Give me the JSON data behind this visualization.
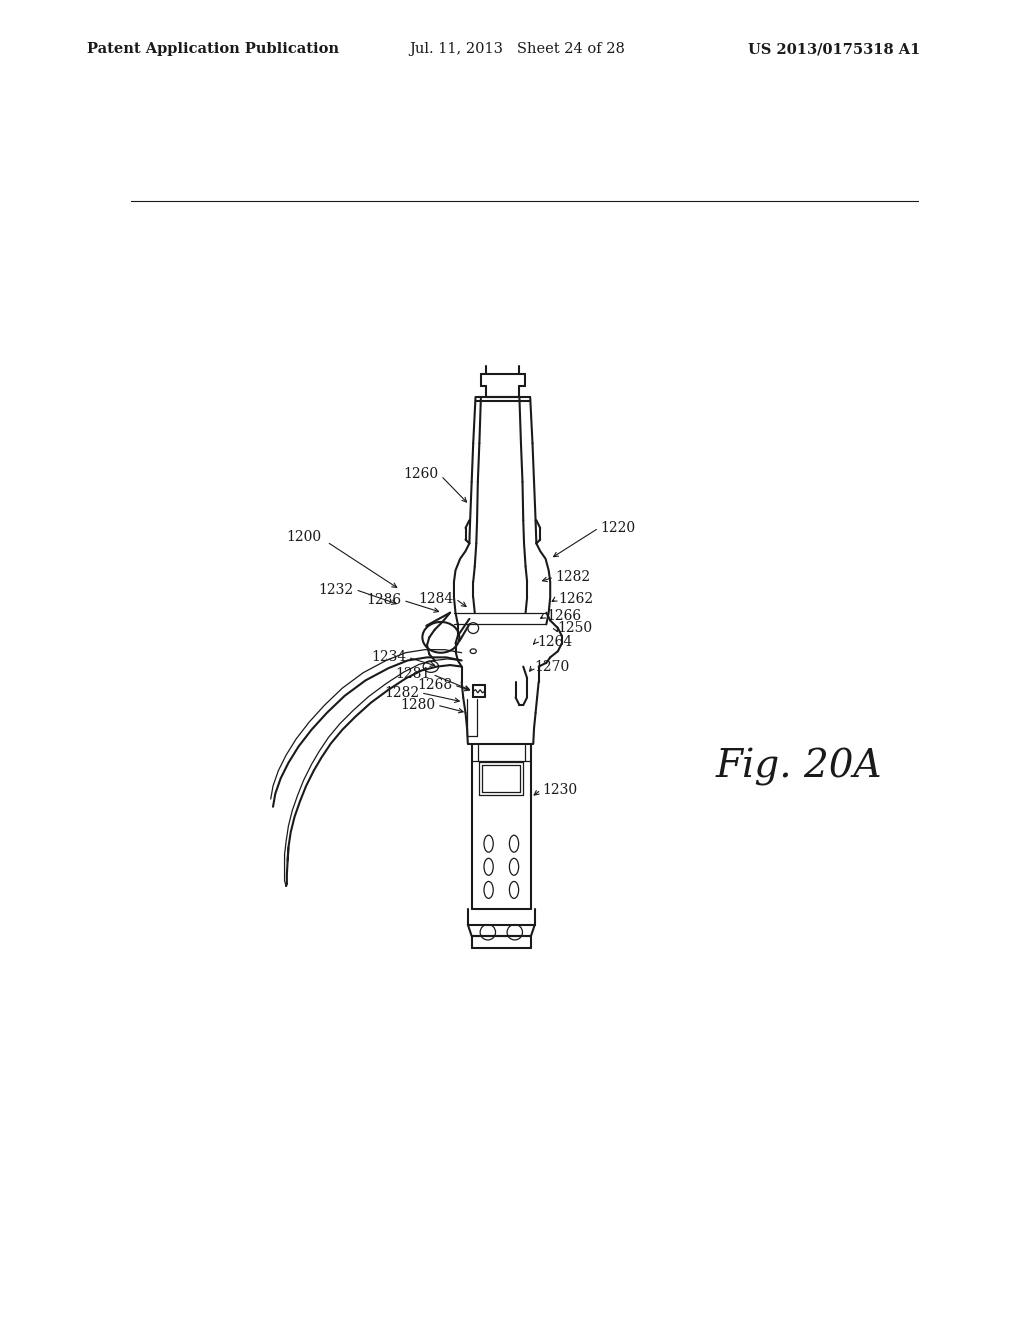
{
  "header_left": "Patent Application Publication",
  "header_mid": "Jul. 11, 2013   Sheet 24 of 28",
  "header_right": "US 2013/0175318 A1",
  "fig_label": "Fig. 20A",
  "bg_color": "#ffffff",
  "line_color": "#1a1a1a",
  "header_fontsize": 10.5,
  "fig_label_fontsize": 28,
  "annotation_fontsize": 10
}
